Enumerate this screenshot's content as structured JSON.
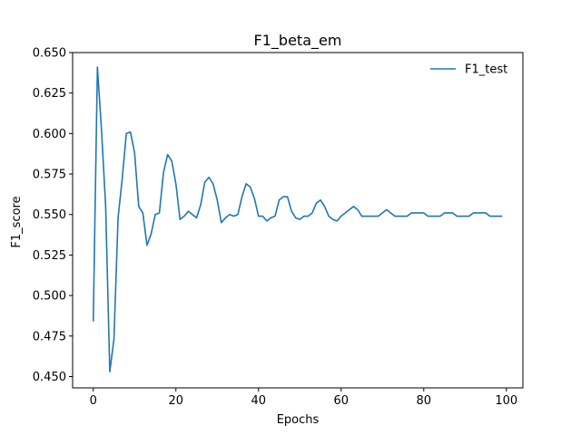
{
  "chart_data": {
    "type": "line",
    "title": "F1_beta_em",
    "xlabel": "Epochs",
    "ylabel": "F1_score",
    "xlim": [
      -5,
      104
    ],
    "ylim": [
      0.443,
      0.65
    ],
    "xticks": [
      0,
      20,
      40,
      60,
      80,
      100
    ],
    "yticks": [
      0.45,
      0.475,
      0.5,
      0.525,
      0.55,
      0.575,
      0.6,
      0.625,
      0.65
    ],
    "grid": false,
    "legend_position": "top-right",
    "series": [
      {
        "name": "F1_test",
        "color": "#1f77b4",
        "x": [
          0,
          1,
          2,
          3,
          4,
          5,
          6,
          7,
          8,
          9,
          10,
          11,
          12,
          13,
          14,
          15,
          16,
          17,
          18,
          19,
          20,
          21,
          22,
          23,
          24,
          25,
          26,
          27,
          28,
          29,
          30,
          31,
          32,
          33,
          34,
          35,
          36,
          37,
          38,
          39,
          40,
          41,
          42,
          43,
          44,
          45,
          46,
          47,
          48,
          49,
          50,
          51,
          52,
          53,
          54,
          55,
          56,
          57,
          58,
          59,
          60,
          61,
          62,
          63,
          64,
          65,
          66,
          67,
          68,
          69,
          70,
          71,
          72,
          73,
          74,
          75,
          76,
          77,
          78,
          79,
          80,
          81,
          82,
          83,
          84,
          85,
          86,
          87,
          88,
          89,
          90,
          91,
          92,
          93,
          94,
          95,
          96,
          97,
          98,
          99
        ],
        "values": [
          0.484,
          0.641,
          0.602,
          0.555,
          0.453,
          0.473,
          0.548,
          0.572,
          0.6,
          0.601,
          0.588,
          0.555,
          0.551,
          0.531,
          0.538,
          0.55,
          0.551,
          0.576,
          0.587,
          0.583,
          0.569,
          0.547,
          0.549,
          0.552,
          0.55,
          0.548,
          0.556,
          0.57,
          0.573,
          0.569,
          0.559,
          0.545,
          0.548,
          0.55,
          0.549,
          0.55,
          0.561,
          0.569,
          0.567,
          0.56,
          0.549,
          0.549,
          0.546,
          0.548,
          0.549,
          0.559,
          0.561,
          0.561,
          0.552,
          0.548,
          0.547,
          0.549,
          0.549,
          0.551,
          0.557,
          0.559,
          0.555,
          0.549,
          0.547,
          0.546,
          0.549,
          0.551,
          0.553,
          0.555,
          0.553,
          0.549,
          0.549,
          0.549,
          0.549,
          0.549,
          0.551,
          0.553,
          0.551,
          0.549,
          0.549,
          0.549,
          0.549,
          0.551,
          0.551,
          0.551,
          0.551,
          0.549,
          0.549,
          0.549,
          0.549,
          0.551,
          0.551,
          0.551,
          0.549,
          0.549,
          0.549,
          0.549,
          0.551,
          0.551,
          0.551,
          0.551,
          0.549,
          0.549,
          0.549,
          0.549
        ]
      }
    ]
  }
}
